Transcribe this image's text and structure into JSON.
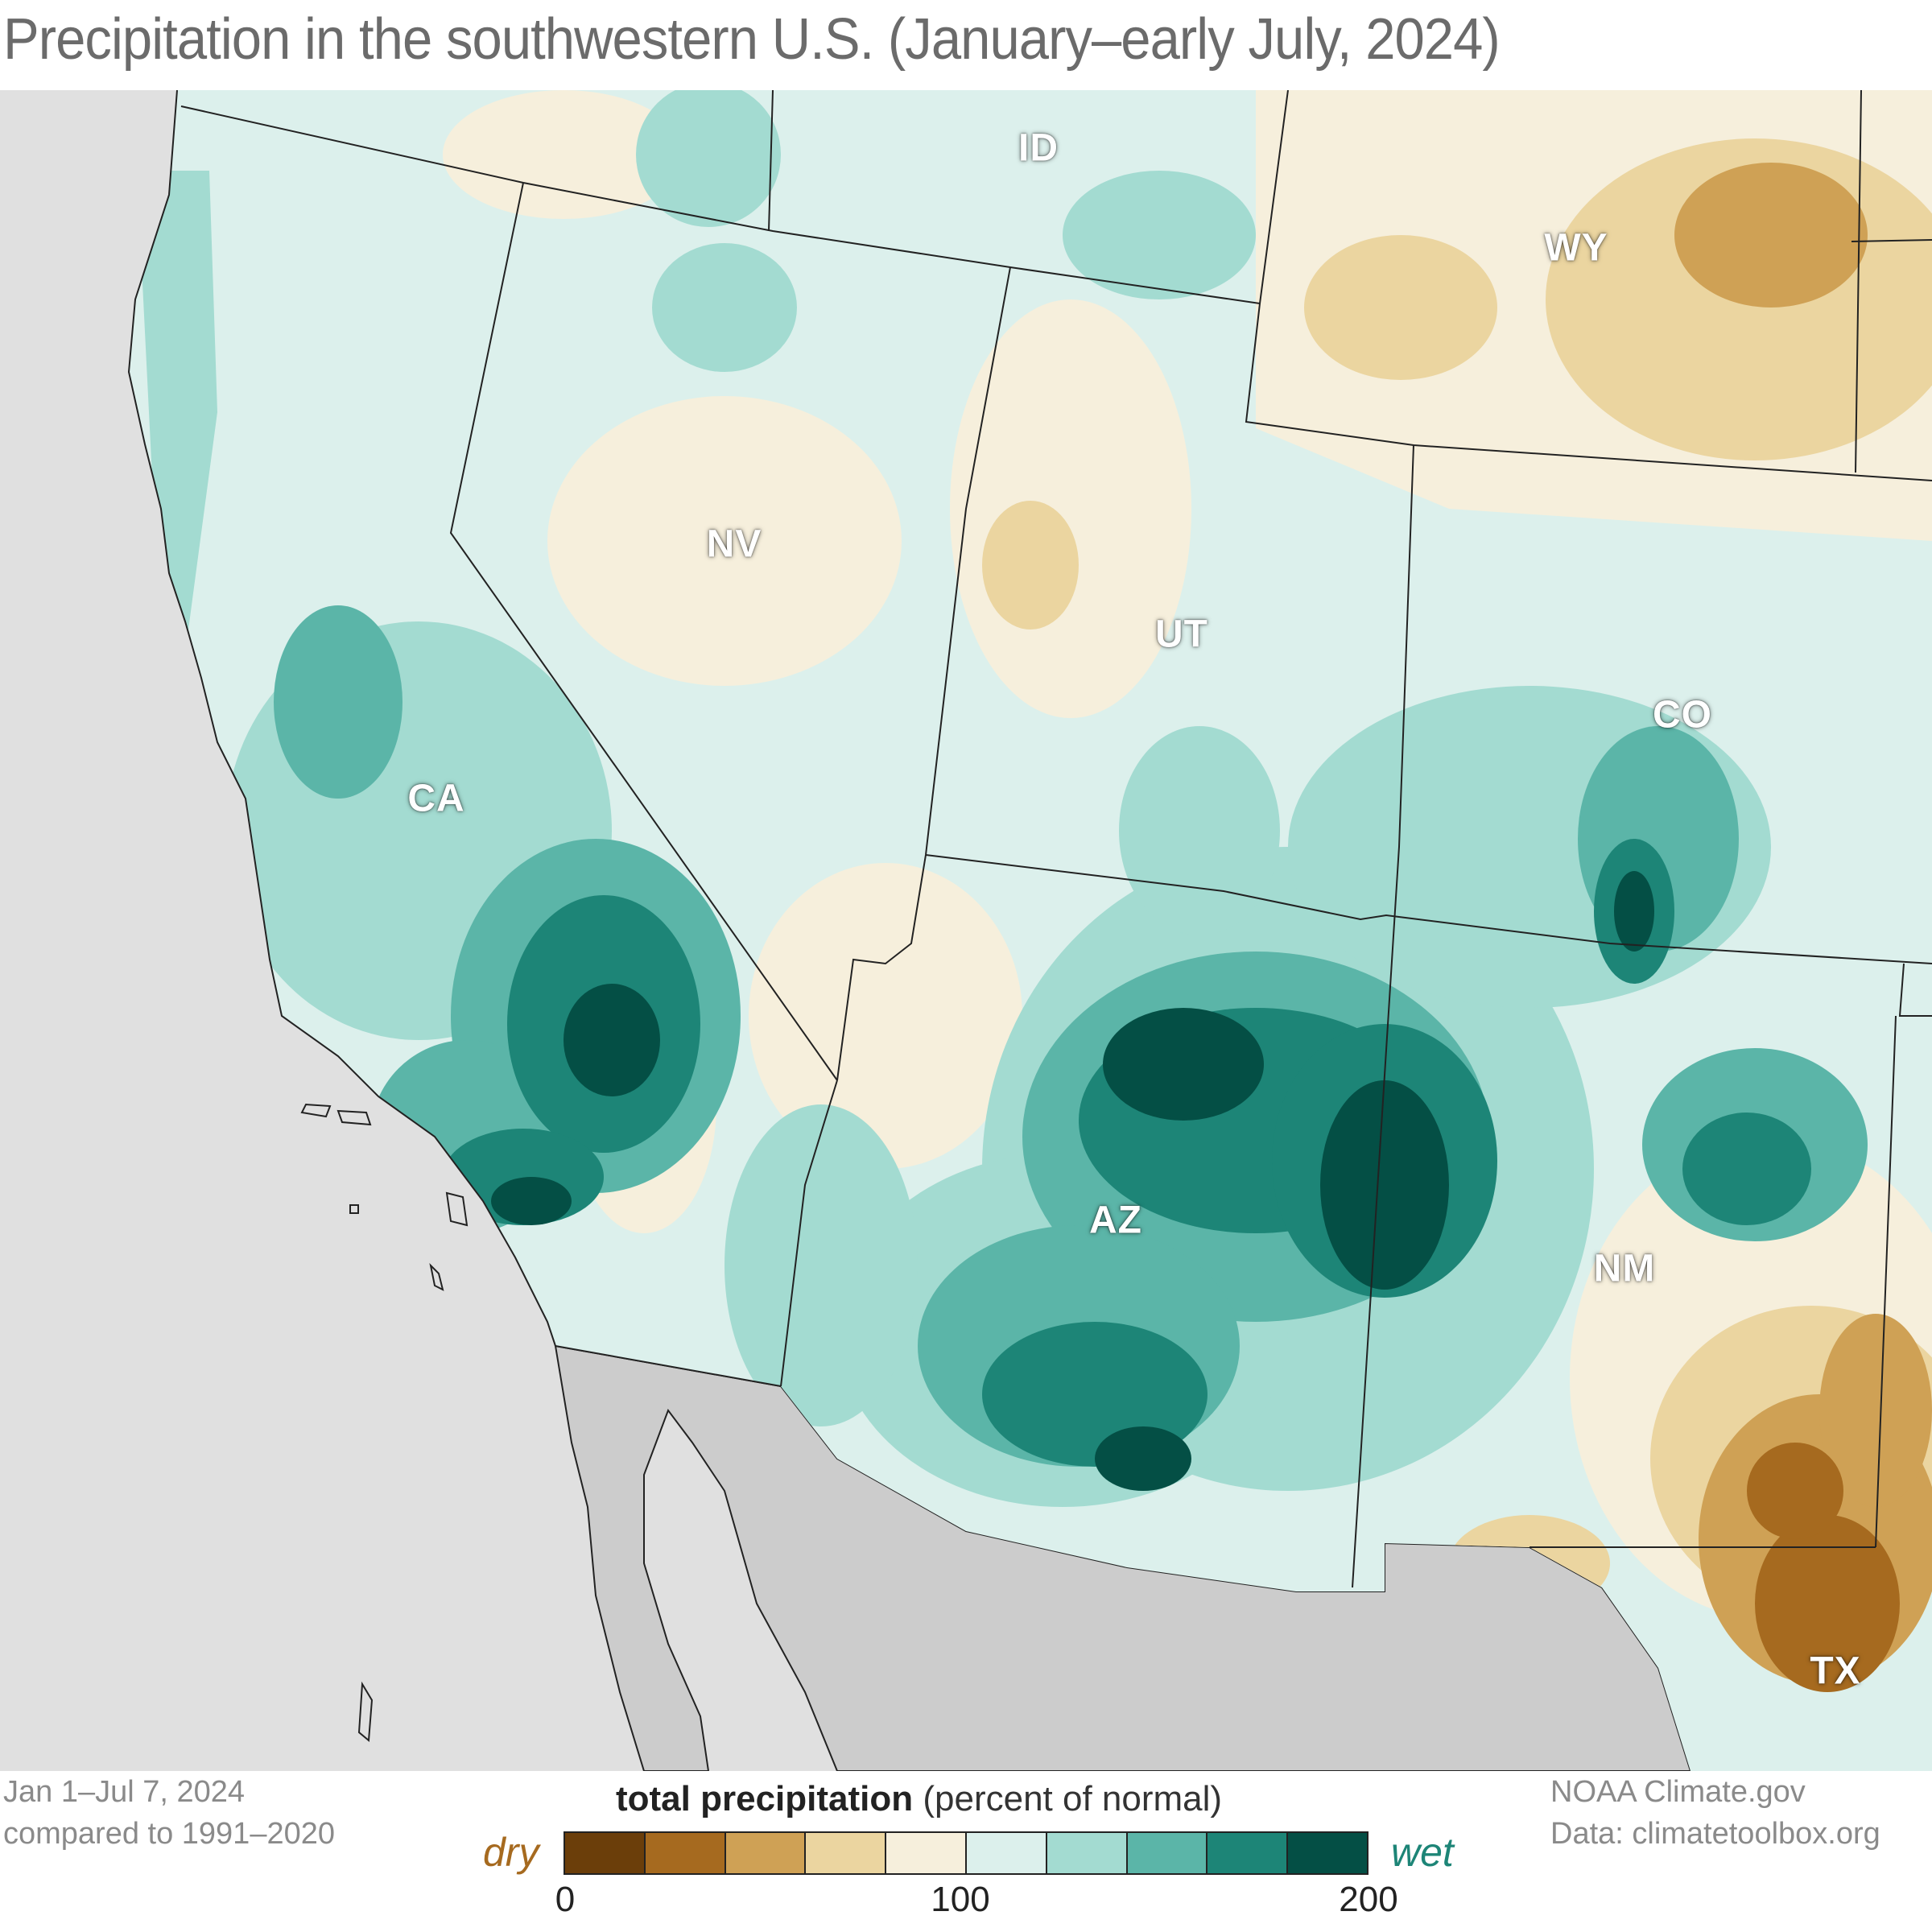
{
  "title": "Precipitation in the southwestern U.S. (January–early July, 2024)",
  "states": [
    {
      "abbr": "ID",
      "key": "id"
    },
    {
      "abbr": "WY",
      "key": "wy"
    },
    {
      "abbr": "NV",
      "key": "nv"
    },
    {
      "abbr": "UT",
      "key": "ut"
    },
    {
      "abbr": "CO",
      "key": "co"
    },
    {
      "abbr": "CA",
      "key": "ca"
    },
    {
      "abbr": "AZ",
      "key": "az"
    },
    {
      "abbr": "NM",
      "key": "nm"
    },
    {
      "abbr": "TX",
      "key": "tx"
    }
  ],
  "footer_left": {
    "line1": "Jan 1–Jul 7, 2024",
    "line2": "compared to 1991–2020"
  },
  "footer_right": {
    "line1": "NOAA Climate.gov",
    "line2": "Data: climatetoolbox.org"
  },
  "legend": {
    "title_bold": "total precipitation",
    "title_rest": "(percent of normal)",
    "dry_label": "dry",
    "wet_label": "wet",
    "ticks": [
      "0",
      "100",
      "200"
    ],
    "colors": [
      "#6b3e0a",
      "#a66a1f",
      "#cfa155",
      "#ebd5a0",
      "#f6efdc",
      "#dcf0ec",
      "#a3dbd1",
      "#5bb5a8",
      "#1d8577",
      "#044f45"
    ],
    "dry_color": "#a66a1f",
    "wet_color": "#1d8577"
  },
  "colors": {
    "ocean": "#e0e0e0",
    "mexico": "#cccccc",
    "border": "#222222",
    "title_text": "#6b6b6b"
  }
}
